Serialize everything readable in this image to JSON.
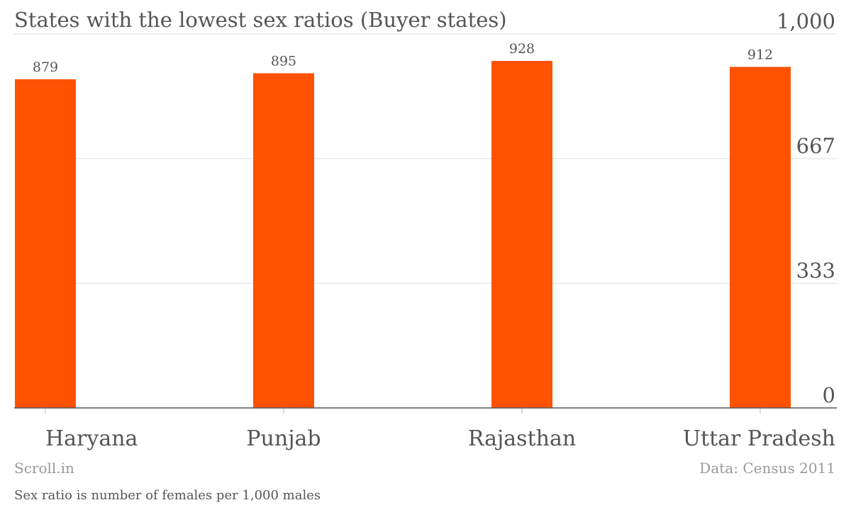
{
  "chart_data": {
    "type": "bar",
    "title": "States with the lowest sex ratios (Buyer states)",
    "categories": [
      "Haryana",
      "Punjab",
      "Rajasthan",
      "Uttar Pradesh"
    ],
    "values": [
      879,
      895,
      928,
      912
    ],
    "data_labels": [
      "879",
      "895",
      "928",
      "912"
    ],
    "ylim": [
      0,
      1000
    ],
    "yticks": [
      0,
      333,
      667,
      1000
    ],
    "ytick_labels": [
      "0",
      "333",
      "667",
      "1,000"
    ],
    "xlabel": "",
    "ylabel": "",
    "grid": true,
    "legend": "none",
    "color": "#ff5200"
  },
  "footer": {
    "credit": "Scroll.in",
    "source": "Data: Census 2011",
    "note": "Sex ratio is number of females per 1,000 males"
  },
  "colors": {
    "bar": "#ff5200",
    "gridline": "#dddddd",
    "axis": "#555555",
    "text": "#555555",
    "muted_text": "#999999"
  }
}
